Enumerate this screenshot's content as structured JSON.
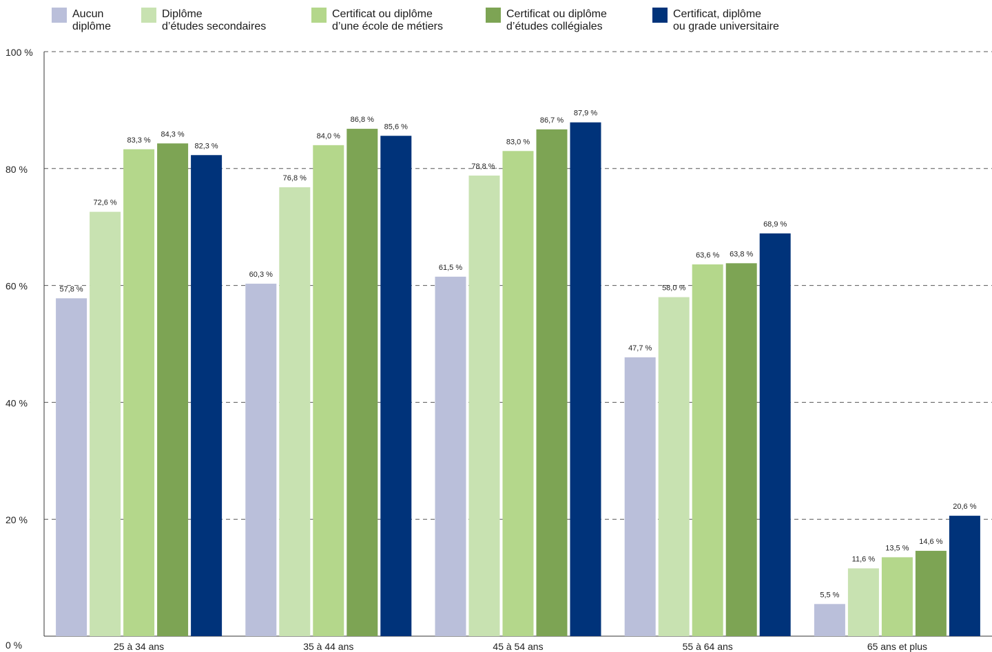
{
  "chart_data": {
    "type": "bar",
    "categories": [
      "25 à 34 ans",
      "35 à 44 ans",
      "45 à 54 ans",
      "55 à 64 ans",
      "65 ans et plus"
    ],
    "series": [
      {
        "name": "Aucun diplôme",
        "legend_lines": [
          "Aucun",
          "diplôme"
        ],
        "color": "#babfda",
        "values": [
          57.8,
          60.3,
          61.5,
          47.7,
          5.5
        ],
        "labels": [
          "57,8 %",
          "60,3 %",
          "61,5 %",
          "47,7 %",
          "5,5 %"
        ]
      },
      {
        "name": "Diplôme d’études secondaires",
        "legend_lines": [
          "Diplôme",
          "d’études secondaires"
        ],
        "color": "#c8e2b1",
        "values": [
          72.6,
          76.8,
          78.8,
          58.0,
          11.6
        ],
        "labels": [
          "72,6 %",
          "76,8 %",
          "78,8 %.",
          "58,0 %",
          "11,6 %"
        ]
      },
      {
        "name": "Certificat ou diplôme d’une école de métiers",
        "legend_lines": [
          "Certificat ou diplôme",
          "d’une école de métiers"
        ],
        "color": "#b4d78b",
        "values": [
          83.3,
          84.0,
          83.0,
          63.6,
          13.5
        ],
        "labels": [
          "83,3 %",
          "84,0 %",
          "83,0 %",
          "63,6 %",
          "13,5 %"
        ]
      },
      {
        "name": "Certificat ou diplôme d’études collégiales",
        "legend_lines": [
          "Certificat ou diplôme",
          "d’études collégiales"
        ],
        "color": "#7da454",
        "values": [
          84.3,
          86.8,
          86.7,
          63.8,
          14.6
        ],
        "labels": [
          "84,3 %",
          "86,8 %",
          "86,7 %",
          "63,8 %",
          "14,6 %"
        ]
      },
      {
        "name": "Certificat, diplôme ou grade universitaire",
        "legend_lines": [
          "Certificat, diplôme",
          "ou grade universitaire"
        ],
        "color": "#00337a",
        "values": [
          82.3,
          85.6,
          87.9,
          68.9,
          20.6
        ],
        "labels": [
          "82,3 %",
          "85,6 %",
          "87,9 %",
          "68,9 %",
          "20,6 %"
        ]
      }
    ],
    "yticks": [
      0,
      20,
      40,
      60,
      80,
      100
    ],
    "ytick_labels": [
      "0 %",
      "20 %",
      "40 %",
      "60 %",
      "80 %",
      "100 %"
    ],
    "ylim": [
      0,
      100
    ],
    "grid": "dashed horizontal",
    "legend_position": "top"
  }
}
